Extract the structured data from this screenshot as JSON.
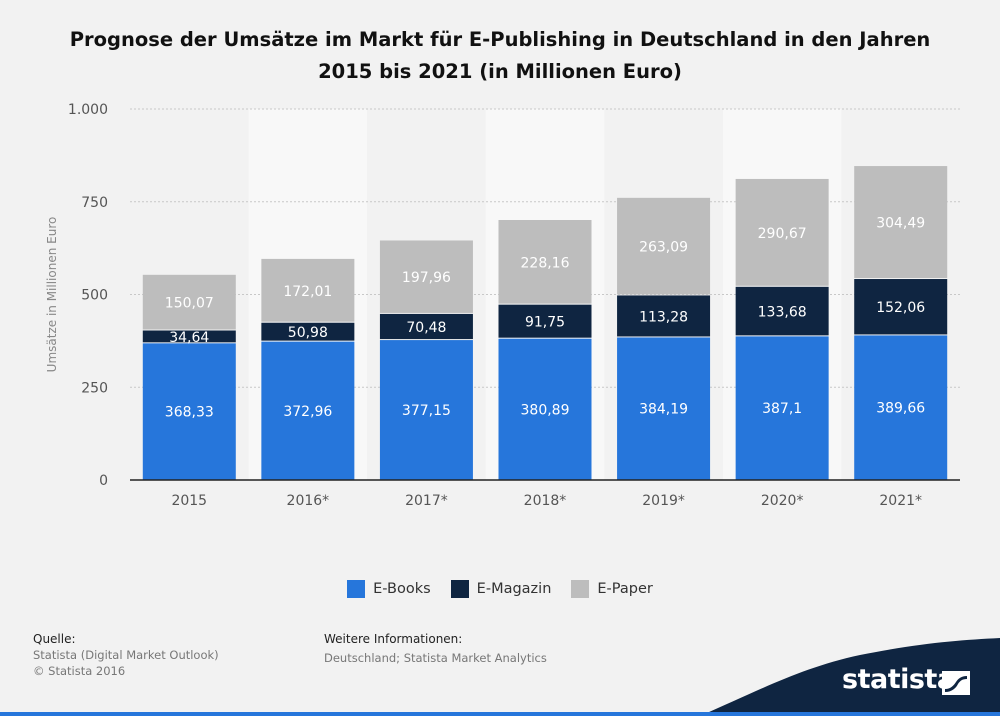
{
  "title_line1": "Prognose der Umsätze im Markt für E-Publishing in Deutschland in den Jahren",
  "title_line2": "2015 bis 2021 (in Millionen Euro)",
  "chart_data": {
    "type": "bar",
    "stacked": true,
    "categories": [
      "2015",
      "2016*",
      "2017*",
      "2018*",
      "2019*",
      "2020*",
      "2021*"
    ],
    "series": [
      {
        "name": "E-Books",
        "color": "#2676db",
        "values": [
          368.33,
          372.96,
          377.15,
          380.89,
          384.19,
          387.1,
          389.66
        ],
        "labels": [
          "368,33",
          "372,96",
          "377,15",
          "380,89",
          "384,19",
          "387,1",
          "389,66"
        ]
      },
      {
        "name": "E-Magazin",
        "color": "#0f2541",
        "values": [
          34.64,
          50.98,
          70.48,
          91.75,
          113.28,
          133.68,
          152.06
        ],
        "labels": [
          "34,64",
          "50,98",
          "70,48",
          "91,75",
          "113,28",
          "133,68",
          "152,06"
        ]
      },
      {
        "name": "E-Paper",
        "color": "#bdbdbd",
        "values": [
          150.07,
          172.01,
          197.96,
          228.16,
          263.09,
          290.67,
          304.49
        ],
        "labels": [
          "150,07",
          "172,01",
          "197,96",
          "228,16",
          "263,09",
          "290,67",
          "304,49"
        ]
      }
    ],
    "ylabel": "Umsätze in Millionen Euro",
    "ylim": [
      0,
      1000
    ],
    "yticks": [
      0,
      250,
      500,
      750,
      1000
    ],
    "ytick_labels": [
      "0",
      "250",
      "500",
      "750",
      "1.000"
    ],
    "grid": true,
    "legend_position": "bottom"
  },
  "footer": {
    "source_title": "Quelle:",
    "source_line1": "Statista (Digital Market Outlook)",
    "source_line2": "© Statista 2016",
    "info_title": "Weitere Informationen:",
    "info_line1": "Deutschland; Statista Market Analytics",
    "logo_text": "statista"
  }
}
